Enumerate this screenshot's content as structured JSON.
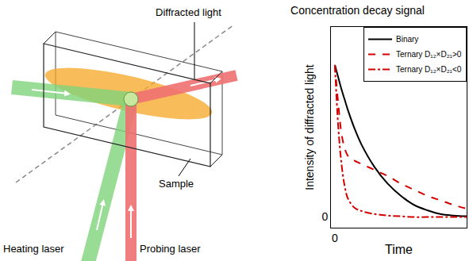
{
  "diagram": {
    "labels": {
      "diffracted": "Diffracted light",
      "sample": "Sample",
      "heating": "Heating laser",
      "probing": "Probing laser"
    }
  },
  "chart_data": {
    "type": "line",
    "title": "Concentration decay signal",
    "x_label": "Time",
    "y_label": "Intensity of diffracted light",
    "x": [
      0,
      0.25,
      0.5,
      0.75,
      1,
      1.5,
      2,
      3,
      4,
      5,
      6,
      7,
      8,
      9,
      10
    ],
    "series": [
      {
        "name": "Binary",
        "color": "#000000",
        "line_style": "solid",
        "values": [
          1.0,
          0.92,
          0.84,
          0.77,
          0.7,
          0.58,
          0.48,
          0.33,
          0.22,
          0.14,
          0.08,
          0.045,
          0.02,
          0.01,
          0.005
        ]
      },
      {
        "name": "Ternary D₁₂×D₂₁>0",
        "color": "#d40000",
        "line_style": "dash",
        "values": [
          1.0,
          0.75,
          0.55,
          0.45,
          0.4,
          0.37,
          0.35,
          0.31,
          0.27,
          0.22,
          0.18,
          0.14,
          0.11,
          0.08,
          0.055
        ]
      },
      {
        "name": "Ternary D₁₂×D₂₁<0",
        "color": "#d40000",
        "line_style": "dashdot",
        "values": [
          1.0,
          0.6,
          0.35,
          0.2,
          0.12,
          0.06,
          0.04,
          0.02,
          0.01,
          0.005,
          0,
          0,
          0,
          0,
          0
        ]
      }
    ],
    "xlim": [
      -0.3,
      10
    ],
    "xticks": [
      0
    ],
    "ylim": [
      -0.07,
      1.25
    ],
    "yticks": [
      0
    ],
    "grid": false,
    "legend": "upper right"
  }
}
